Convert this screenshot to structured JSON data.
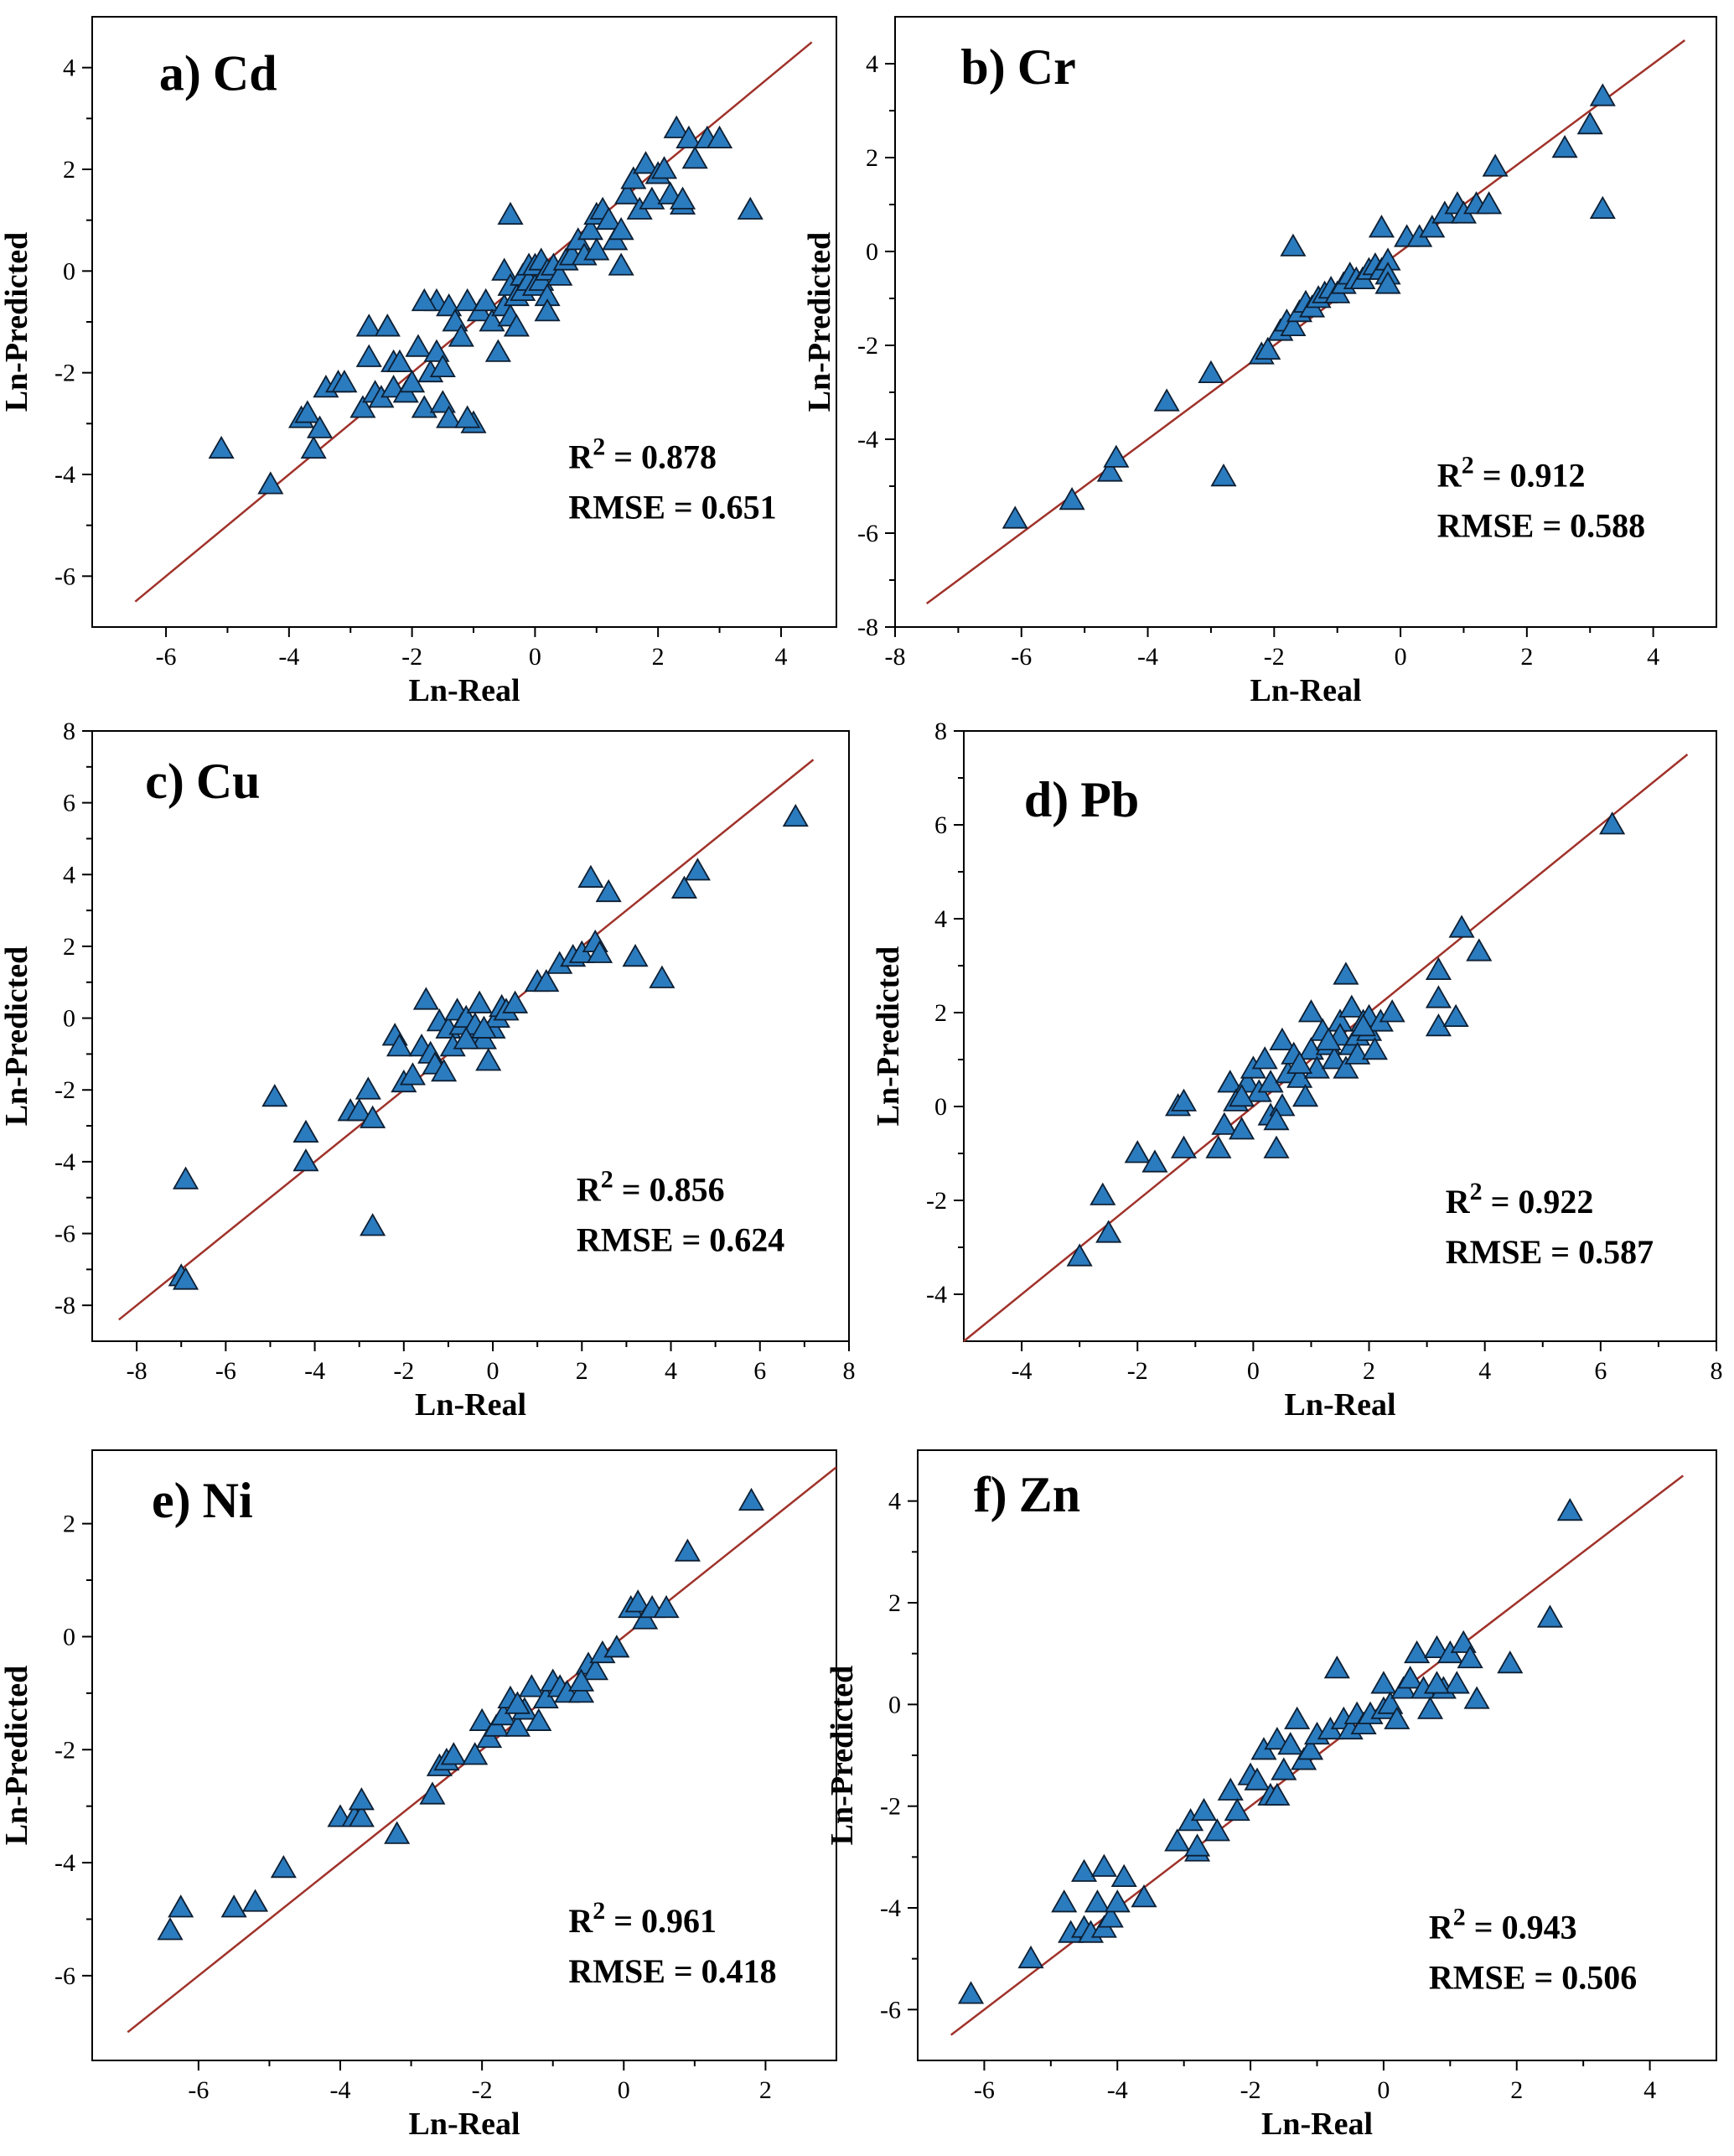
{
  "chart_data": [
    {
      "type": "scatter",
      "panel_label": "a)",
      "element": "Cd",
      "xlabel": "Ln-Real",
      "ylabel": "Ln-Predicted",
      "xlim": [
        -7.2,
        4.9
      ],
      "ylim": [
        -7.0,
        5.0
      ],
      "xticks": [
        -6,
        -4,
        -2,
        0,
        2,
        4
      ],
      "yticks": [
        -6,
        -4,
        -2,
        0,
        2,
        4
      ],
      "fit_line": [
        [
          -6.5,
          -6.5
        ],
        [
          4.5,
          4.5
        ]
      ],
      "r2_label": "R",
      "r2_sup": "2",
      "r2_text": " = 0.878",
      "rmse_text": "RMSE = 0.651",
      "x": [
        -5.1,
        -4.3,
        -3.8,
        -3.7,
        -3.6,
        -3.5,
        -3.4,
        -3.2,
        -3.1,
        -2.8,
        -2.7,
        -2.6,
        -2.5,
        -2.4,
        -2.3,
        -2.3,
        -2.2,
        -2.1,
        -2.0,
        -1.9,
        -1.8,
        -1.7,
        -1.6,
        -1.6,
        -1.5,
        -1.5,
        -1.4,
        -1.4,
        -1.3,
        -1.2,
        -1.1,
        -1.0,
        -0.9,
        -0.8,
        -0.7,
        -0.6,
        -0.5,
        -0.5,
        -0.4,
        -0.4,
        -0.3,
        -0.3,
        -0.2,
        -0.2,
        -0.1,
        -0.1,
        0.0,
        0.0,
        0.1,
        0.1,
        0.2,
        0.2,
        0.3,
        0.4,
        0.5,
        0.6,
        0.7,
        0.8,
        0.9,
        1.0,
        1.0,
        1.1,
        1.2,
        1.3,
        1.4,
        1.5,
        1.6,
        1.7,
        1.8,
        1.9,
        2.0,
        2.1,
        2.2,
        2.3,
        2.4,
        2.5,
        2.6,
        2.8,
        3.0,
        3.5,
        -2.7,
        -2.4,
        -1.8,
        -1.1,
        -0.4,
        0.2,
        1.4,
        2.4
      ],
      "y": [
        -3.5,
        -4.2,
        -2.9,
        -2.8,
        -3.5,
        -3.1,
        -2.3,
        -2.2,
        -2.2,
        -2.7,
        -1.7,
        -2.4,
        -2.5,
        -1.1,
        -1.8,
        -2.3,
        -1.8,
        -2.4,
        -2.2,
        -1.5,
        -2.7,
        -2.0,
        -0.6,
        -1.6,
        -2.6,
        -1.9,
        -2.9,
        -0.7,
        -1.0,
        -1.3,
        -0.6,
        -3.0,
        -0.8,
        -0.6,
        -1.0,
        -1.6,
        -0.7,
        0.0,
        -0.3,
        -0.9,
        -1.1,
        -0.5,
        -0.1,
        -0.4,
        -0.2,
        0.1,
        -0.3,
        0.1,
        -0.2,
        0.2,
        -0.5,
        0.0,
        0.1,
        -0.1,
        0.2,
        0.3,
        0.6,
        0.3,
        0.8,
        1.1,
        0.4,
        1.2,
        1.0,
        0.6,
        0.8,
        1.5,
        1.8,
        1.2,
        2.1,
        1.4,
        1.9,
        2.0,
        1.5,
        2.8,
        1.3,
        2.6,
        2.2,
        2.6,
        2.6,
        1.2,
        -1.1,
        -1.1,
        -0.6,
        -2.9,
        1.1,
        -0.8,
        0.1,
        1.4
      ]
    },
    {
      "type": "scatter",
      "panel_label": "b)",
      "element": "Cr",
      "xlabel": "Ln-Real",
      "ylabel": "Ln-Predicted",
      "xlim": [
        -8.0,
        5.0
      ],
      "ylim": [
        -8.0,
        5.0
      ],
      "xticks": [
        -8,
        -6,
        -4,
        -2,
        0,
        2,
        4
      ],
      "yticks": [
        -8,
        -6,
        -4,
        -2,
        0,
        2,
        4
      ],
      "fit_line": [
        [
          -7.5,
          -7.5
        ],
        [
          4.5,
          4.5
        ]
      ],
      "r2_label": "R",
      "r2_sup": "2",
      "r2_text": " = 0.912",
      "rmse_text": "RMSE = 0.588",
      "x": [
        -6.1,
        -5.2,
        -4.6,
        -4.5,
        -3.7,
        -3.0,
        -2.8,
        -2.2,
        -2.1,
        -1.9,
        -1.8,
        -1.7,
        -1.6,
        -1.5,
        -1.4,
        -1.3,
        -1.2,
        -1.1,
        -1.0,
        -0.9,
        -0.8,
        -0.7,
        -0.6,
        -0.5,
        -0.4,
        -0.3,
        -0.3,
        -0.2,
        -0.2,
        -0.2,
        0.1,
        0.3,
        0.5,
        0.7,
        0.9,
        1.0,
        1.2,
        1.4,
        1.5,
        2.6,
        3.0,
        3.2,
        3.2,
        -1.7
      ],
      "y": [
        -5.7,
        -5.3,
        -4.7,
        -4.4,
        -3.2,
        -2.6,
        -4.8,
        -2.2,
        -2.1,
        -1.7,
        -1.5,
        -1.6,
        -1.3,
        -1.1,
        -1.2,
        -1.0,
        -0.9,
        -0.8,
        -0.9,
        -0.7,
        -0.5,
        -0.6,
        -0.6,
        -0.4,
        -0.3,
        -0.4,
        0.5,
        -0.2,
        -0.5,
        -0.7,
        0.3,
        0.3,
        0.5,
        0.8,
        1.0,
        0.8,
        1.0,
        1.0,
        1.8,
        2.2,
        2.7,
        3.3,
        0.9,
        0.1
      ]
    },
    {
      "type": "scatter",
      "panel_label": "c)",
      "element": "Cu",
      "xlabel": "Ln-Real",
      "ylabel": "Ln-Predicted",
      "xlim": [
        -9.0,
        8.0
      ],
      "ylim": [
        -9.0,
        8.0
      ],
      "xticks": [
        -8,
        -6,
        -4,
        -2,
        0,
        2,
        4,
        6,
        8
      ],
      "yticks": [
        -8,
        -6,
        -4,
        -2,
        0,
        2,
        4,
        6,
        8
      ],
      "fit_line": [
        [
          -8.4,
          -8.4
        ],
        [
          7.2,
          7.2
        ]
      ],
      "r2_label": "R",
      "r2_sup": "2",
      "r2_text": " = 0.856",
      "rmse_text": "RMSE = 0.624",
      "x": [
        -7.0,
        -6.9,
        -6.9,
        -4.9,
        -4.2,
        -4.2,
        -3.2,
        -3.0,
        -2.8,
        -2.7,
        -2.7,
        -2.2,
        -2.1,
        -2.0,
        -1.8,
        -1.6,
        -1.5,
        -1.4,
        -1.3,
        -1.2,
        -1.1,
        -1.0,
        -0.9,
        -0.8,
        -0.7,
        -0.6,
        -0.5,
        -0.4,
        -0.3,
        -0.2,
        -0.1,
        0.0,
        0.1,
        0.2,
        0.3,
        0.5,
        1.0,
        1.2,
        1.5,
        1.8,
        2.0,
        2.2,
        2.3,
        2.4,
        2.6,
        3.2,
        3.8,
        4.3,
        4.6,
        6.8,
        -0.2,
        -0.6
      ],
      "y": [
        -7.2,
        -7.3,
        -4.5,
        -2.2,
        -3.2,
        -4.0,
        -2.6,
        -2.6,
        -2.0,
        -5.8,
        -2.8,
        -0.5,
        -0.8,
        -1.8,
        -1.6,
        -0.8,
        0.5,
        -1.0,
        -1.3,
        -0.1,
        -1.5,
        -0.3,
        -0.8,
        0.2,
        -0.2,
        0.0,
        -0.5,
        -0.2,
        0.4,
        -0.6,
        -1.2,
        -0.3,
        0.0,
        0.3,
        0.2,
        0.4,
        1.0,
        1.0,
        1.5,
        1.7,
        1.8,
        3.9,
        2.1,
        1.8,
        3.5,
        1.7,
        1.1,
        3.6,
        4.1,
        5.6,
        -0.3,
        -0.6
      ]
    },
    {
      "type": "scatter",
      "panel_label": "d)",
      "element": "Pb",
      "xlabel": "Ln-Real",
      "ylabel": "Ln-Predicted",
      "xlim": [
        -5.0,
        8.0
      ],
      "ylim": [
        -5.0,
        8.0
      ],
      "xticks": [
        -4,
        -2,
        0,
        2,
        4,
        6,
        8
      ],
      "yticks": [
        -4,
        -2,
        0,
        2,
        4,
        6,
        8
      ],
      "fit_line": [
        [
          -5.0,
          -5.0
        ],
        [
          7.5,
          7.5
        ]
      ],
      "r2_label": "R",
      "r2_sup": "2",
      "r2_text": " = 0.922",
      "rmse_text": "RMSE = 0.587",
      "x": [
        -3.0,
        -2.6,
        -2.5,
        -2.0,
        -1.7,
        -1.3,
        -1.2,
        -1.2,
        -0.6,
        -0.5,
        -0.4,
        -0.3,
        -0.2,
        -0.1,
        0.0,
        0.1,
        0.2,
        0.3,
        0.3,
        0.4,
        0.5,
        0.5,
        0.6,
        0.7,
        0.8,
        0.9,
        1.0,
        1.0,
        1.1,
        1.2,
        1.3,
        1.4,
        1.5,
        1.5,
        1.6,
        1.6,
        1.7,
        1.7,
        1.8,
        1.8,
        1.9,
        2.0,
        2.0,
        2.1,
        2.2,
        2.4,
        3.2,
        3.2,
        3.2,
        3.5,
        3.6,
        3.9,
        6.2,
        -0.2,
        0.4,
        0.8,
        1.3,
        1.9
      ],
      "y": [
        -3.2,
        -1.9,
        -2.7,
        -1.0,
        -1.2,
        0.0,
        0.1,
        -0.9,
        -0.9,
        -0.4,
        0.5,
        0.1,
        -0.5,
        0.5,
        0.8,
        0.3,
        1.0,
        0.5,
        -0.2,
        -0.9,
        1.4,
        0.0,
        0.7,
        1.1,
        0.6,
        0.2,
        2.0,
        1.2,
        0.8,
        1.6,
        1.3,
        1.0,
        1.8,
        1.5,
        2.8,
        0.8,
        1.3,
        2.1,
        1.5,
        1.1,
        1.8,
        1.6,
        1.9,
        1.2,
        1.8,
        2.0,
        1.7,
        2.3,
        2.9,
        1.9,
        3.8,
        3.3,
        6.0,
        0.2,
        -0.3,
        0.9,
        1.4,
        1.7
      ]
    },
    {
      "type": "scatter",
      "panel_label": "e)",
      "element": "Ni",
      "xlabel": "Ln-Real",
      "ylabel": "Ln-Predicted",
      "xlim": [
        -7.5,
        3.0
      ],
      "ylim": [
        -7.5,
        3.3
      ],
      "xticks": [
        -6,
        -4,
        -2,
        0,
        2
      ],
      "yticks": [
        -6,
        -4,
        -2,
        0,
        2
      ],
      "fit_line": [
        [
          -7.0,
          -7.0
        ],
        [
          3.0,
          3.0
        ]
      ],
      "r2_label": "R",
      "r2_sup": "2",
      "r2_text": " = 0.961",
      "rmse_text": "RMSE = 0.418",
      "x": [
        -6.4,
        -6.25,
        -5.5,
        -5.2,
        -4.8,
        -4.0,
        -3.8,
        -3.7,
        -3.7,
        -3.2,
        -2.7,
        -2.6,
        -2.5,
        -2.4,
        -2.1,
        -2.0,
        -1.9,
        -1.8,
        -1.7,
        -1.6,
        -1.5,
        -1.4,
        -1.3,
        -1.2,
        -1.1,
        -1.0,
        -0.9,
        -0.8,
        -0.6,
        -0.5,
        -0.4,
        -0.3,
        -0.1,
        0.1,
        0.2,
        0.3,
        0.4,
        0.6,
        0.9,
        1.8,
        -1.5,
        -0.6
      ],
      "y": [
        -5.2,
        -4.8,
        -4.8,
        -4.7,
        -4.1,
        -3.2,
        -3.2,
        -3.2,
        -2.9,
        -3.5,
        -2.8,
        -2.3,
        -2.2,
        -2.1,
        -2.1,
        -1.5,
        -1.8,
        -1.6,
        -1.4,
        -1.1,
        -1.6,
        -1.3,
        -0.9,
        -1.5,
        -1.1,
        -0.8,
        -0.9,
        -1.0,
        -1.0,
        -0.5,
        -0.6,
        -0.3,
        -0.2,
        0.5,
        0.6,
        0.3,
        0.5,
        0.5,
        1.5,
        2.4,
        -1.2,
        -0.8
      ]
    },
    {
      "type": "scatter",
      "panel_label": "f)",
      "element": "Zn",
      "xlabel": "Ln-Real",
      "ylabel": "Ln-Predicted",
      "xlim": [
        -7.0,
        5.0
      ],
      "ylim": [
        -7.0,
        5.0
      ],
      "xticks": [
        -6,
        -4,
        -2,
        0,
        2,
        4
      ],
      "yticks": [
        -6,
        -4,
        -2,
        0,
        2,
        4
      ],
      "fit_line": [
        [
          -6.5,
          -6.5
        ],
        [
          4.5,
          4.5
        ]
      ],
      "r2_label": "R",
      "r2_sup": "2",
      "r2_text": " = 0.943",
      "rmse_text": "RMSE = 0.506",
      "x": [
        -6.2,
        -5.3,
        -4.8,
        -4.7,
        -4.5,
        -4.5,
        -4.4,
        -4.3,
        -4.2,
        -4.2,
        -4.1,
        -4.0,
        -3.9,
        -3.6,
        -3.1,
        -2.9,
        -2.8,
        -2.7,
        -2.5,
        -2.3,
        -2.2,
        -2.0,
        -1.9,
        -1.8,
        -1.7,
        -1.6,
        -1.5,
        -1.4,
        -1.3,
        -1.2,
        -1.1,
        -1.0,
        -0.8,
        -0.7,
        -0.6,
        -0.5,
        -0.4,
        -0.3,
        -0.2,
        0.0,
        0.0,
        0.1,
        0.2,
        0.3,
        0.4,
        0.5,
        0.6,
        0.7,
        0.8,
        0.9,
        1.0,
        1.1,
        1.2,
        1.3,
        1.4,
        1.9,
        2.5,
        2.8,
        -2.8,
        -1.6,
        0.8
      ],
      "y": [
        -5.7,
        -5.0,
        -3.9,
        -4.5,
        -4.4,
        -3.3,
        -4.5,
        -3.9,
        -4.4,
        -3.2,
        -4.2,
        -3.9,
        -3.4,
        -3.8,
        -2.7,
        -2.3,
        -2.9,
        -2.1,
        -2.5,
        -1.7,
        -2.1,
        -1.4,
        -1.5,
        -0.9,
        -1.8,
        -0.7,
        -1.3,
        -0.8,
        -0.3,
        -1.1,
        -0.9,
        -0.6,
        -0.5,
        0.7,
        -0.3,
        -0.5,
        -0.2,
        -0.4,
        -0.2,
        0.4,
        -0.1,
        0.0,
        -0.3,
        0.3,
        0.5,
        1.0,
        0.3,
        -0.1,
        1.1,
        0.3,
        1.0,
        0.4,
        1.2,
        0.9,
        0.1,
        0.8,
        1.7,
        3.8,
        -2.8,
        -1.8,
        0.4
      ]
    }
  ]
}
